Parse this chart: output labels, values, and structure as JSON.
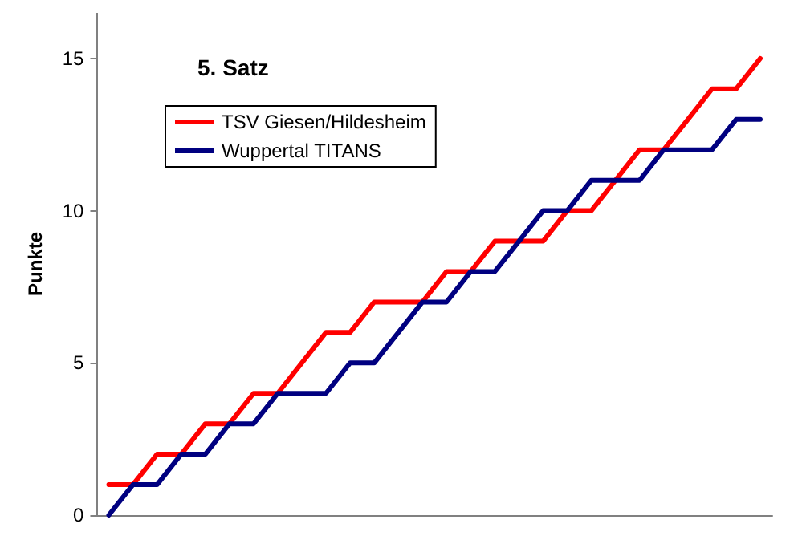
{
  "chart_data": {
    "type": "line",
    "title": "5. Satz",
    "ylabel": "Punkte",
    "categories": [
      null,
      null,
      null,
      null,
      null,
      null,
      null,
      null,
      null,
      null,
      null,
      null,
      null,
      null,
      null,
      null,
      null,
      null,
      null,
      null,
      null,
      null,
      null,
      null,
      null,
      null,
      null,
      null
    ],
    "series": [
      {
        "name": "TSV Giesen/Hildesheim",
        "color": "#ff0000",
        "values": [
          1,
          1,
          2,
          2,
          3,
          3,
          4,
          4,
          5,
          6,
          6,
          7,
          7,
          7,
          8,
          8,
          9,
          9,
          9,
          10,
          10,
          11,
          12,
          12,
          13,
          14,
          14,
          15
        ]
      },
      {
        "name": "Wuppertal TITANS",
        "color": "#000080",
        "values": [
          0,
          1,
          1,
          2,
          2,
          3,
          3,
          4,
          4,
          4,
          5,
          5,
          6,
          7,
          7,
          8,
          8,
          9,
          10,
          10,
          11,
          11,
          11,
          12,
          12,
          12,
          13,
          13
        ]
      }
    ],
    "ylim": [
      0,
      16.5
    ],
    "yticks": [
      0,
      5,
      10,
      15
    ],
    "grid": false,
    "legend": "top left",
    "marker": "none",
    "line_style": "solid",
    "tick_labels": "y"
  }
}
